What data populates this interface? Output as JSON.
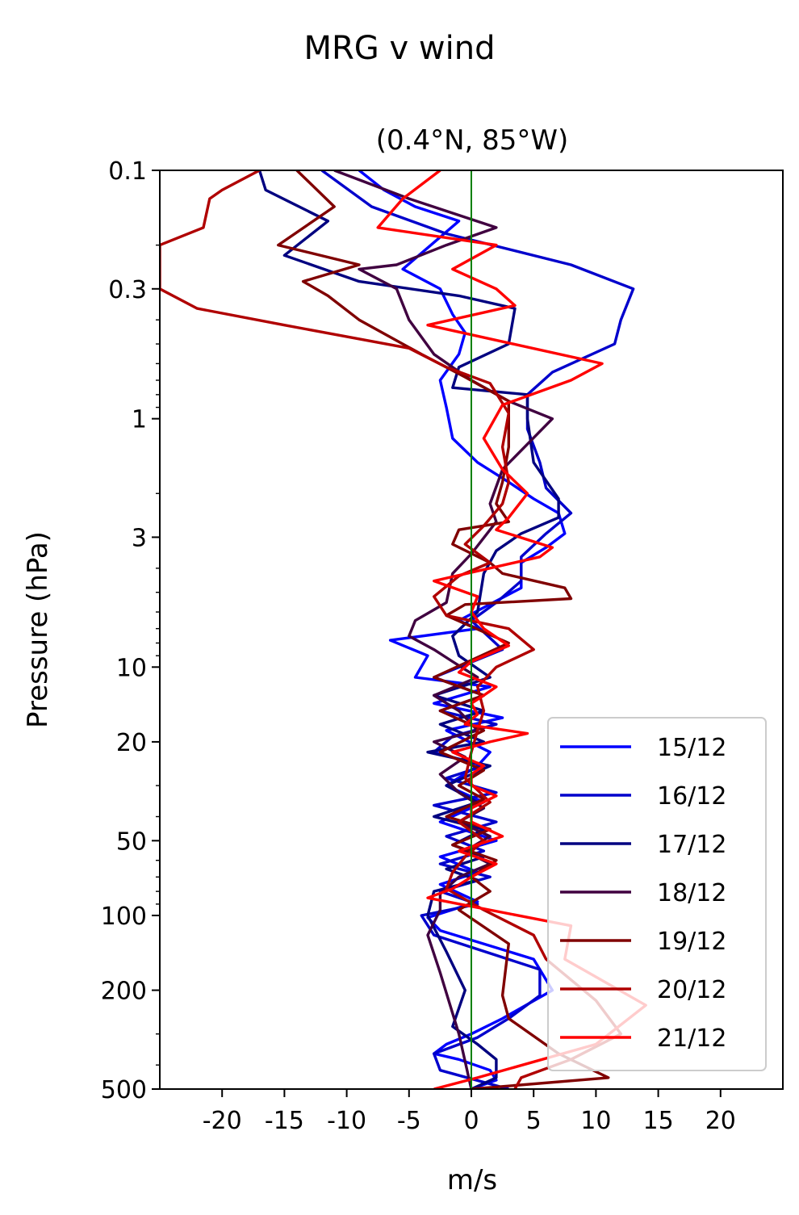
{
  "chart_data": {
    "type": "line",
    "suptitle": "MRG v wind",
    "title": "(0.4°N, 85°W)",
    "xlabel": "m/s",
    "ylabel": "Pressure (hPa)",
    "xlim": [
      -25,
      25
    ],
    "ylim": [
      500,
      0.1
    ],
    "yscale": "log",
    "xticks": [
      -20,
      -15,
      -10,
      -5,
      0,
      5,
      10,
      15,
      20
    ],
    "xticklabels": [
      "-20",
      "-15",
      "-10",
      "-5",
      "0",
      "5",
      "10",
      "15",
      "20"
    ],
    "yticks": [
      0.1,
      0.3,
      1,
      3,
      10,
      20,
      50,
      100,
      200,
      500
    ],
    "yticklabels": [
      "0.1",
      "0.3",
      "1",
      "3",
      "10",
      "20",
      "50",
      "100",
      "200",
      "500"
    ],
    "zero_line_color": "#008000",
    "grid": false,
    "legend": "lower-right",
    "series": [
      {
        "name": "15/12",
        "color": "#0000ff",
        "x": [
          -9,
          -7,
          -4.5,
          -1,
          -5.5,
          -2.5,
          -1.5,
          -0.5,
          -1,
          -2.5,
          -2,
          -1.5,
          0.5,
          3,
          5,
          7,
          7.5,
          6,
          4,
          4,
          -1,
          0.5,
          -6.5,
          -3.5,
          -4.5,
          1.5,
          -3,
          2.5,
          -2,
          1.5,
          0.5,
          -2,
          1,
          -2.5,
          2,
          -2.5,
          0.5,
          -2.5,
          0.5,
          -3.5,
          -2.5,
          5,
          6.5,
          2.5,
          0,
          -2,
          -3,
          -1,
          1.5,
          2,
          0
        ],
        "p": [
          0.1,
          0.12,
          0.14,
          0.16,
          0.25,
          0.3,
          0.38,
          0.45,
          0.55,
          0.7,
          0.9,
          1.2,
          1.5,
          1.8,
          2.1,
          2.4,
          2.9,
          3.3,
          3.8,
          4.8,
          6.5,
          7,
          7.8,
          9,
          11,
          12,
          14,
          16,
          18,
          22,
          25,
          30,
          35,
          42,
          50,
          58,
          67,
          75,
          88,
          102,
          115,
          150,
          200,
          260,
          300,
          330,
          360,
          380,
          420,
          460,
          500
        ]
      },
      {
        "name": "16/12",
        "color": "#0000cc",
        "x": [
          -12,
          -8,
          -2,
          8,
          13,
          12,
          11.5,
          6.5,
          4.5,
          4.5,
          5.5,
          6,
          8,
          6,
          4,
          4,
          2,
          0,
          2.5,
          -3,
          1,
          -2.5,
          2,
          -1.5,
          -3,
          1,
          -2,
          2,
          -3,
          2,
          -2,
          1,
          -2.5,
          1.5,
          -2.5,
          0.5,
          -4,
          -3,
          5.5,
          5.5,
          3,
          0.5,
          -3,
          -2.5,
          3
        ],
        "p": [
          0.1,
          0.14,
          0.18,
          0.24,
          0.3,
          0.4,
          0.5,
          0.65,
          0.8,
          1.1,
          1.5,
          1.9,
          2.4,
          2.9,
          3.6,
          4.5,
          5.5,
          6.5,
          8.5,
          11,
          13,
          15,
          17,
          19,
          22,
          25,
          28,
          32,
          36,
          42,
          48,
          55,
          62,
          70,
          80,
          90,
          100,
          120,
          165,
          210,
          260,
          310,
          360,
          420,
          500
        ]
      },
      {
        "name": "17/12",
        "color": "#000080",
        "x": [
          -17,
          -16.5,
          -11.5,
          -15,
          -9,
          -1,
          3.5,
          3,
          -1,
          -1.5,
          4.5,
          4.5,
          5,
          7,
          7,
          4,
          2,
          1,
          0.5,
          -1.5,
          -1,
          1.5,
          -3,
          1,
          -2.5,
          1,
          -3.5,
          1.5,
          -2,
          0.5,
          -3,
          1,
          -1.5,
          1,
          -2,
          0.5,
          -3,
          -3.5,
          -2,
          -0.5,
          -1.5,
          0.5,
          2,
          2,
          0
        ],
        "p": [
          0.1,
          0.12,
          0.16,
          0.22,
          0.28,
          0.32,
          0.36,
          0.5,
          0.62,
          0.75,
          0.8,
          1,
          1.5,
          2.1,
          2.5,
          2.9,
          3.4,
          4.2,
          6,
          7.5,
          9,
          11,
          13,
          15,
          17,
          20,
          22,
          25,
          30,
          35,
          40,
          45,
          52,
          58,
          65,
          72,
          80,
          100,
          140,
          200,
          280,
          330,
          380,
          450,
          500
        ]
      },
      {
        "name": "18/12",
        "color": "#400040",
        "x": [
          -11,
          -5,
          2,
          -2,
          -6,
          -9,
          -6,
          -5,
          -3,
          0,
          3,
          6.5,
          2.5,
          1.5,
          2,
          0,
          -1.5,
          -2,
          -4.5,
          -5,
          -3,
          -1.5,
          0.5,
          -3,
          -1,
          0.5,
          -3,
          -0.5,
          -2.5,
          -1,
          1,
          -1,
          1.5,
          -0.5,
          1.5,
          -1,
          -2.5,
          -2.5,
          -3.5,
          -2.5,
          -1,
          0
        ],
        "p": [
          0.1,
          0.13,
          0.17,
          0.2,
          0.24,
          0.25,
          0.3,
          0.4,
          0.55,
          0.7,
          0.85,
          1,
          1.6,
          2.2,
          2.6,
          3.5,
          4.2,
          5.5,
          6.5,
          7.5,
          8.5,
          9.5,
          11,
          13,
          15,
          18,
          20,
          23,
          27,
          32,
          37,
          42,
          48,
          55,
          62,
          70,
          82,
          95,
          120,
          170,
          300,
          500
        ]
      },
      {
        "name": "19/12",
        "color": "#800000",
        "x": [
          -14,
          -11,
          -15.5,
          -9,
          -13.5,
          -11.5,
          -9,
          -4,
          -0.5,
          3,
          3,
          2.5,
          2,
          3,
          -1,
          -1.5,
          1.5,
          2.5,
          7.5,
          8,
          -0.5,
          -2,
          3,
          -3,
          1,
          -2.5,
          1,
          -2.5,
          1,
          -1,
          1,
          -2,
          1.5,
          -1.5,
          2,
          0,
          1.5,
          -1,
          3,
          2.5,
          3,
          7,
          11,
          0
        ],
        "p": [
          0.1,
          0.14,
          0.2,
          0.24,
          0.28,
          0.32,
          0.4,
          0.55,
          0.68,
          0.85,
          1.3,
          1.8,
          2.2,
          2.6,
          2.8,
          3.2,
          3.8,
          4.2,
          4.8,
          5.3,
          5.6,
          6.2,
          8,
          11,
          13,
          15,
          18,
          22,
          26,
          30,
          34,
          40,
          45,
          52,
          60,
          70,
          80,
          95,
          130,
          210,
          260,
          360,
          450,
          500
        ]
      },
      {
        "name": "20/12",
        "color": "#b00000",
        "x": [
          -17,
          -20,
          -21,
          -21.5,
          -25,
          -25,
          -22,
          -15,
          -5,
          -2,
          1.5,
          3,
          2.5,
          3,
          2.5,
          1,
          -0.5,
          1.5,
          -1,
          -3,
          -2,
          3,
          5,
          2,
          0.5,
          1,
          0.5,
          0,
          -0.5,
          1.5,
          -1,
          1,
          -0.5,
          -1.5,
          -2,
          1,
          5,
          6,
          10,
          12,
          8,
          4,
          3.5
        ],
        "p": [
          0.1,
          0.12,
          0.13,
          0.17,
          0.2,
          0.3,
          0.36,
          0.42,
          0.52,
          0.62,
          0.72,
          0.95,
          1.3,
          1.8,
          2.2,
          2.7,
          3.2,
          3.8,
          4.3,
          5.2,
          6.2,
          7,
          8.5,
          10,
          12,
          15,
          18,
          22,
          28,
          35,
          42,
          50,
          58,
          67,
          78,
          95,
          120,
          150,
          220,
          300,
          380,
          450,
          500
        ]
      },
      {
        "name": "21/12",
        "color": "#ff0000",
        "x": [
          -2.5,
          -5.5,
          -7.5,
          2,
          -1.5,
          2,
          3.5,
          -3.5,
          10.5,
          8,
          2.5,
          1,
          2.5,
          4.5,
          3,
          2,
          6.5,
          5.5,
          -3,
          0.5,
          0,
          1,
          3,
          0,
          -1,
          2,
          1,
          0,
          0.5,
          -0.5,
          4.5,
          1.5,
          -1.5,
          1,
          0,
          0,
          2,
          0,
          0,
          2.5,
          -1,
          2,
          0,
          -1.5,
          -3.5,
          8,
          7.5,
          14,
          10,
          0.5,
          -3
        ],
        "p": [
          0.1,
          0.13,
          0.17,
          0.2,
          0.25,
          0.3,
          0.35,
          0.42,
          0.6,
          0.7,
          0.88,
          1.2,
          1.6,
          2,
          2.5,
          2.8,
          3.3,
          3.6,
          4.5,
          5.2,
          6,
          7,
          8.2,
          9.5,
          10.5,
          12,
          13,
          14,
          15.5,
          17,
          18.5,
          20,
          22,
          25,
          27,
          30,
          33,
          37,
          42,
          48,
          55,
          62,
          70,
          78,
          85,
          110,
          150,
          230,
          330,
          450,
          500
        ]
      }
    ]
  }
}
